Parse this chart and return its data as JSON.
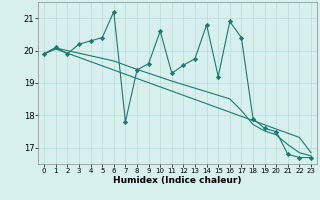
{
  "xlabel": "Humidex (Indice chaleur)",
  "x": [
    0,
    1,
    2,
    3,
    4,
    5,
    6,
    7,
    8,
    9,
    10,
    11,
    12,
    13,
    14,
    15,
    16,
    17,
    18,
    19,
    20,
    21,
    22,
    23
  ],
  "line1": [
    19.9,
    20.1,
    19.9,
    20.2,
    20.3,
    20.4,
    21.2,
    17.8,
    19.4,
    19.6,
    20.6,
    19.3,
    19.55,
    19.75,
    20.8,
    19.2,
    20.9,
    20.4,
    17.9,
    17.6,
    17.5,
    16.8,
    16.7,
    16.7
  ],
  "line2": [
    19.9,
    20.05,
    19.92,
    19.79,
    19.66,
    19.53,
    19.4,
    19.27,
    19.14,
    19.01,
    18.88,
    18.75,
    18.62,
    18.49,
    18.36,
    18.23,
    18.1,
    17.97,
    17.84,
    17.71,
    17.58,
    17.45,
    17.32,
    16.85
  ],
  "line3": [
    19.9,
    20.08,
    20.0,
    19.92,
    19.84,
    19.76,
    19.68,
    19.55,
    19.42,
    19.3,
    19.18,
    19.06,
    18.95,
    18.84,
    18.73,
    18.62,
    18.51,
    18.15,
    17.72,
    17.52,
    17.4,
    17.1,
    16.85,
    16.75
  ],
  "color": "#1a7a6e",
  "bg_color": "#d8f0ed",
  "grid_color": "#b8dcd8",
  "ylim": [
    16.5,
    21.5
  ],
  "xlim": [
    -0.5,
    23.5
  ],
  "yticks": [
    17,
    18,
    19,
    20,
    21
  ],
  "xticks": [
    0,
    1,
    2,
    3,
    4,
    5,
    6,
    7,
    8,
    9,
    10,
    11,
    12,
    13,
    14,
    15,
    16,
    17,
    18,
    19,
    20,
    21,
    22,
    23
  ]
}
